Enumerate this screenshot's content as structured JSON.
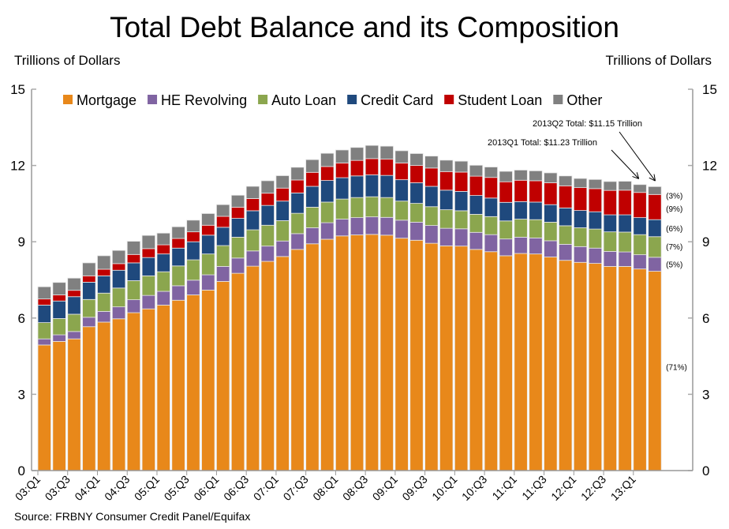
{
  "chart_data": {
    "type": "bar",
    "stacked": true,
    "title": "Total Debt Balance and its Composition",
    "ylabel_left": "Trillions of Dollars",
    "ylabel_right": "Trillions of Dollars",
    "ylim": [
      0,
      15
    ],
    "yticks": [
      0,
      3,
      6,
      9,
      12,
      15
    ],
    "legend_position": "top",
    "grid": false,
    "categories": [
      "03:Q1",
      "03:Q2",
      "03:Q3",
      "03:Q4",
      "04:Q1",
      "04:Q2",
      "04:Q3",
      "04:Q4",
      "05:Q1",
      "05:Q2",
      "05:Q3",
      "05:Q4",
      "06:Q1",
      "06:Q2",
      "06:Q3",
      "06:Q4",
      "07:Q1",
      "07:Q2",
      "07:Q3",
      "07:Q4",
      "08:Q1",
      "08:Q2",
      "08:Q3",
      "08:Q4",
      "09:Q1",
      "09:Q2",
      "09:Q3",
      "09:Q4",
      "10:Q1",
      "10:Q2",
      "10:Q3",
      "10:Q4",
      "11:Q1",
      "11:Q2",
      "11:Q3",
      "11:Q4",
      "12:Q1",
      "12:Q2",
      "12:Q3",
      "12:Q4",
      "13:Q1",
      "13:Q2"
    ],
    "tick_labels": [
      "03:Q1",
      "03:Q3",
      "04:Q1",
      "04:Q3",
      "05:Q1",
      "05:Q3",
      "06:Q1",
      "06:Q3",
      "07:Q1",
      "07:Q3",
      "08:Q1",
      "08:Q3",
      "09:Q1",
      "09:Q3",
      "10:Q1",
      "10:Q3",
      "11:Q1",
      "11:Q3",
      "12:Q1",
      "12:Q3",
      "13:Q1"
    ],
    "series": [
      {
        "name": "Mortgage",
        "color": "#E8881A",
        "values": [
          4.94,
          5.08,
          5.18,
          5.66,
          5.84,
          5.97,
          6.21,
          6.36,
          6.51,
          6.7,
          6.91,
          7.1,
          7.44,
          7.76,
          8.04,
          8.23,
          8.42,
          8.7,
          8.92,
          9.1,
          9.23,
          9.27,
          9.29,
          9.26,
          9.14,
          9.06,
          8.94,
          8.84,
          8.83,
          8.7,
          8.61,
          8.45,
          8.54,
          8.52,
          8.4,
          8.27,
          8.19,
          8.15,
          8.03,
          8.03,
          7.93,
          7.84
        ]
      },
      {
        "name": "HE Revolving",
        "color": "#8064A2",
        "values": [
          0.24,
          0.26,
          0.29,
          0.37,
          0.42,
          0.47,
          0.51,
          0.53,
          0.54,
          0.57,
          0.58,
          0.6,
          0.59,
          0.6,
          0.6,
          0.6,
          0.61,
          0.62,
          0.63,
          0.65,
          0.66,
          0.68,
          0.69,
          0.7,
          0.71,
          0.71,
          0.7,
          0.69,
          0.68,
          0.67,
          0.67,
          0.66,
          0.64,
          0.63,
          0.64,
          0.63,
          0.62,
          0.6,
          0.59,
          0.57,
          0.56,
          0.55
        ]
      },
      {
        "name": "Auto Loan",
        "color": "#8BA64E",
        "values": [
          0.64,
          0.64,
          0.68,
          0.7,
          0.72,
          0.74,
          0.75,
          0.77,
          0.77,
          0.78,
          0.8,
          0.82,
          0.82,
          0.82,
          0.83,
          0.82,
          0.8,
          0.8,
          0.81,
          0.81,
          0.79,
          0.79,
          0.79,
          0.78,
          0.75,
          0.74,
          0.74,
          0.73,
          0.71,
          0.71,
          0.71,
          0.71,
          0.71,
          0.72,
          0.73,
          0.73,
          0.74,
          0.75,
          0.77,
          0.78,
          0.79,
          0.81
        ]
      },
      {
        "name": "Credit Card",
        "color": "#1F497D",
        "values": [
          0.69,
          0.69,
          0.69,
          0.68,
          0.68,
          0.7,
          0.7,
          0.72,
          0.7,
          0.7,
          0.71,
          0.74,
          0.72,
          0.74,
          0.75,
          0.78,
          0.77,
          0.8,
          0.82,
          0.85,
          0.84,
          0.85,
          0.86,
          0.87,
          0.84,
          0.81,
          0.8,
          0.77,
          0.76,
          0.74,
          0.73,
          0.73,
          0.69,
          0.69,
          0.69,
          0.7,
          0.68,
          0.68,
          0.67,
          0.68,
          0.67,
          0.67
        ]
      },
      {
        "name": "Student Loan",
        "color": "#C00000",
        "values": [
          0.24,
          0.24,
          0.25,
          0.25,
          0.26,
          0.26,
          0.33,
          0.35,
          0.36,
          0.38,
          0.39,
          0.39,
          0.43,
          0.44,
          0.48,
          0.48,
          0.51,
          0.51,
          0.55,
          0.55,
          0.58,
          0.61,
          0.64,
          0.64,
          0.66,
          0.68,
          0.72,
          0.73,
          0.76,
          0.76,
          0.81,
          0.81,
          0.84,
          0.84,
          0.86,
          0.87,
          0.9,
          0.91,
          0.96,
          0.97,
          0.99,
          0.99
        ]
      },
      {
        "name": "Other",
        "color": "#808080",
        "values": [
          0.48,
          0.49,
          0.48,
          0.51,
          0.53,
          0.52,
          0.52,
          0.52,
          0.46,
          0.46,
          0.46,
          0.46,
          0.46,
          0.47,
          0.48,
          0.49,
          0.49,
          0.5,
          0.5,
          0.52,
          0.51,
          0.51,
          0.52,
          0.51,
          0.48,
          0.47,
          0.47,
          0.45,
          0.43,
          0.43,
          0.41,
          0.41,
          0.4,
          0.39,
          0.39,
          0.39,
          0.36,
          0.36,
          0.35,
          0.35,
          0.31,
          0.31
        ]
      }
    ],
    "share_labels": {
      "Mortgage": "(71%)",
      "HE Revolving": "(5%)",
      "Auto Loan": "(7%)",
      "Credit Card": "(6%)",
      "Student Loan": "(9%)",
      "Other": "(3%)"
    },
    "annotations": [
      {
        "text": "2013Q2 Total: $11.15 Trillion",
        "target": "13:Q2"
      },
      {
        "text": "2013Q1 Total: $11.23 Trillion",
        "target": "13:Q1"
      }
    ]
  },
  "source": "Source: FRBNY Consumer Credit Panel/Equifax"
}
